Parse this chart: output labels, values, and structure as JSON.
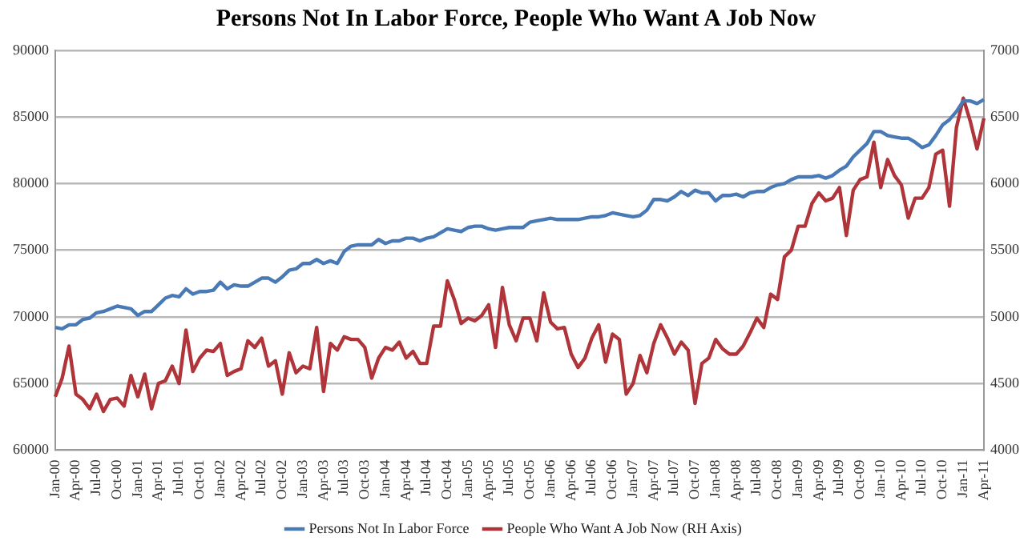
{
  "chart_data": {
    "type": "line",
    "title": "Persons Not In Labor Force, People Who Want A Job Now",
    "categories": [
      "Jan-00",
      null,
      null,
      "Apr-00",
      null,
      null,
      "Jul-00",
      null,
      null,
      "Oct-00",
      null,
      null,
      "Jan-01",
      null,
      null,
      "Apr-01",
      null,
      null,
      "Jul-01",
      null,
      null,
      "Oct-01",
      null,
      null,
      "Jan-02",
      null,
      null,
      "Apr-02",
      null,
      null,
      "Jul-02",
      null,
      null,
      "Oct-02",
      null,
      null,
      "Jan-03",
      null,
      null,
      "Apr-03",
      null,
      null,
      "Jul-03",
      null,
      null,
      "Oct-03",
      null,
      null,
      "Jan-04",
      null,
      null,
      "Apr-04",
      null,
      null,
      "Jul-04",
      null,
      null,
      "Oct-04",
      null,
      null,
      "Jan-05",
      null,
      null,
      "Apr-05",
      null,
      null,
      "Jul-05",
      null,
      null,
      "Oct-05",
      null,
      null,
      "Jan-06",
      null,
      null,
      "Apr-06",
      null,
      null,
      "Jul-06",
      null,
      null,
      "Oct-06",
      null,
      null,
      "Jan-07",
      null,
      null,
      "Apr-07",
      null,
      null,
      "Jul-07",
      null,
      null,
      "Oct-07",
      null,
      null,
      "Jan-08",
      null,
      null,
      "Apr-08",
      null,
      null,
      "Jul-08",
      null,
      null,
      "Oct-08",
      null,
      null,
      "Jan-09",
      null,
      null,
      "Apr-09",
      null,
      null,
      "Jul-09",
      null,
      null,
      "Oct-09",
      null,
      null,
      "Jan-10",
      null,
      null,
      "Apr-10",
      null,
      null,
      "Jul-10",
      null,
      null,
      "Oct-10",
      null,
      null,
      "Jan-11",
      null,
      null,
      "Apr-11"
    ],
    "series": [
      {
        "name": "Persons Not In Labor Force",
        "color": "#4a7ab5",
        "values": [
          69200,
          69100,
          69400,
          69400,
          69800,
          69900,
          70300,
          70400,
          70600,
          70800,
          70700,
          70600,
          70100,
          70400,
          70400,
          70900,
          71400,
          71600,
          71500,
          72100,
          71700,
          71900,
          71900,
          72000,
          72600,
          72100,
          72400,
          72300,
          72300,
          72600,
          72900,
          72900,
          72600,
          73000,
          73500,
          73600,
          74000,
          74000,
          74300,
          74000,
          74200,
          74000,
          74900,
          75300,
          75400,
          75400,
          75400,
          75800,
          75500,
          75700,
          75700,
          75900,
          75900,
          75700,
          75900,
          76000,
          76300,
          76600,
          76500,
          76400,
          76700,
          76800,
          76800,
          76600,
          76500,
          76600,
          76700,
          76700,
          76700,
          77100,
          77200,
          77300,
          77400,
          77300,
          77300,
          77300,
          77300,
          77400,
          77500,
          77500,
          77600,
          77800,
          77700,
          77600,
          77500,
          77600,
          78000,
          78800,
          78800,
          78700,
          79000,
          79400,
          79100,
          79500,
          79300,
          79300,
          78700,
          79100,
          79100,
          79200,
          79000,
          79300,
          79400,
          79400,
          79700,
          79900,
          80000,
          80300,
          80500,
          80500,
          80500,
          80600,
          80400,
          80600,
          81000,
          81300,
          82000,
          82500,
          83000,
          83900,
          83900,
          83600,
          83500,
          83400,
          83400,
          83100,
          82700,
          82900,
          83600,
          84400,
          84800,
          85400,
          86200,
          86200,
          86000,
          86300
        ]
      },
      {
        "name": "People Who Want A Job Now (RH Axis)",
        "color": "#b0353b",
        "axis": "y2",
        "values": [
          4400,
          4540,
          4780,
          4420,
          4380,
          4310,
          4420,
          4290,
          4380,
          4390,
          4330,
          4560,
          4400,
          4570,
          4310,
          4500,
          4520,
          4630,
          4500,
          4900,
          4590,
          4690,
          4750,
          4740,
          4800,
          4560,
          4590,
          4610,
          4820,
          4770,
          4840,
          4630,
          4670,
          4420,
          4730,
          4580,
          4630,
          4610,
          4920,
          4440,
          4800,
          4750,
          4850,
          4830,
          4830,
          4770,
          4540,
          4690,
          4770,
          4750,
          4810,
          4690,
          4740,
          4650,
          4650,
          4930,
          4930,
          5270,
          5130,
          4950,
          4990,
          4970,
          5010,
          5090,
          4770,
          5220,
          4940,
          4820,
          4990,
          4990,
          4820,
          5180,
          4960,
          4910,
          4920,
          4720,
          4620,
          4690,
          4840,
          4940,
          4660,
          4870,
          4830,
          4420,
          4500,
          4710,
          4580,
          4800,
          4940,
          4840,
          4720,
          4810,
          4750,
          4350,
          4650,
          4690,
          4830,
          4760,
          4720,
          4720,
          4780,
          4880,
          4990,
          4920,
          5170,
          5130,
          5450,
          5500,
          5680,
          5680,
          5850,
          5930,
          5870,
          5890,
          5970,
          5610,
          5950,
          6030,
          6050,
          6310,
          5970,
          6180,
          6060,
          5990,
          5740,
          5890,
          5890,
          5970,
          6220,
          6250,
          5830,
          6420,
          6640,
          6470,
          6260,
          6490
        ]
      }
    ],
    "ylim": [
      60000,
      90000
    ],
    "yticks": [
      60000,
      65000,
      70000,
      75000,
      80000,
      85000,
      90000
    ],
    "y2lim": [
      4000,
      7000
    ],
    "y2ticks": [
      4000,
      4500,
      5000,
      5500,
      6000,
      6500,
      7000
    ],
    "grid": "y",
    "legend": "bottom",
    "marker": "none",
    "line_style": "solid"
  }
}
